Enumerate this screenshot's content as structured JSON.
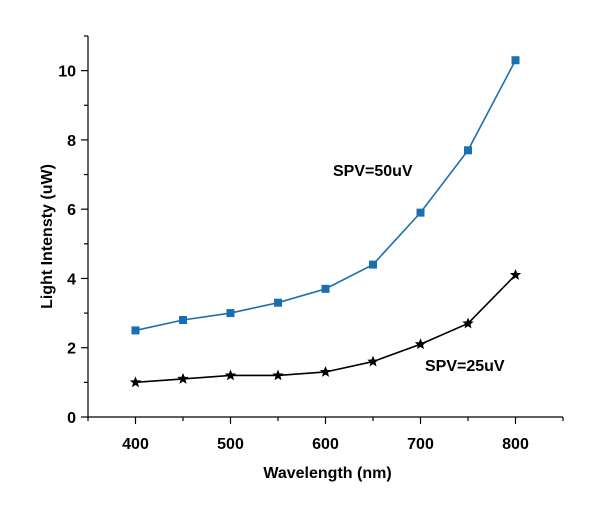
{
  "chart_data": {
    "type": "line",
    "title": "",
    "xlabel": "Wavelength (nm)",
    "ylabel": "Light Intensty (uW)",
    "x": [
      400,
      450,
      500,
      550,
      600,
      650,
      700,
      750,
      800
    ],
    "xlim": [
      350,
      850
    ],
    "ylim": [
      0,
      11
    ],
    "xticks": [
      400,
      500,
      600,
      700,
      800
    ],
    "yticks": [
      0,
      2,
      4,
      6,
      8,
      10
    ],
    "grid": false,
    "series": [
      {
        "name": "SPV=50uV",
        "color": "#1a6fb0",
        "marker": "square",
        "values": [
          2.5,
          2.8,
          3.0,
          3.3,
          3.7,
          4.4,
          5.9,
          7.7,
          10.3
        ]
      },
      {
        "name": "SPV=25uV",
        "color": "#000000",
        "marker": "star",
        "values": [
          1.0,
          1.1,
          1.2,
          1.2,
          1.3,
          1.6,
          2.1,
          2.7,
          4.1
        ]
      }
    ]
  }
}
